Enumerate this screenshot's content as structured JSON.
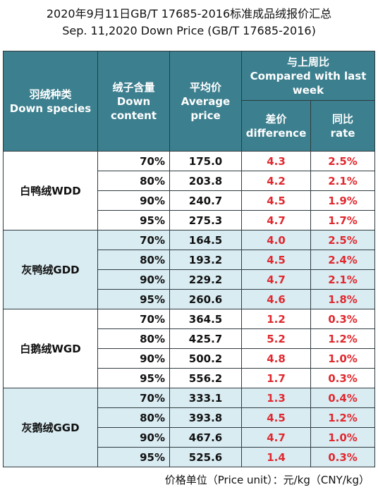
{
  "title_cn": "2020年9月11日GB/T 17685-2016标准成品绒报价汇总",
  "title_en": "Sep. 11,2020 Down Price (GB/T 17685-2016)",
  "headers": {
    "species_cn": "羽绒种类",
    "species_en": "Down species",
    "content_cn": "绒子含量",
    "content_en": "Down content",
    "price_cn": "平均价",
    "price_en": "Average price",
    "compare_cn": "与上周比",
    "compare_en": "Compared with last week",
    "diff_cn": "差价",
    "diff_en": "difference",
    "rate_cn": "同比",
    "rate_en": "rate"
  },
  "groups": [
    {
      "name": "白鸭绒WDD",
      "rows": [
        {
          "content": "70%",
          "price": "175.0",
          "diff": "4.3",
          "rate": "2.5%"
        },
        {
          "content": "80%",
          "price": "203.8",
          "diff": "4.2",
          "rate": "2.1%"
        },
        {
          "content": "90%",
          "price": "240.7",
          "diff": "4.5",
          "rate": "1.9%"
        },
        {
          "content": "95%",
          "price": "275.3",
          "diff": "4.7",
          "rate": "1.7%"
        }
      ]
    },
    {
      "name": "灰鸭绒GDD",
      "rows": [
        {
          "content": "70%",
          "price": "164.5",
          "diff": "4.0",
          "rate": "2.5%"
        },
        {
          "content": "80%",
          "price": "193.2",
          "diff": "4.5",
          "rate": "2.4%"
        },
        {
          "content": "90%",
          "price": "229.2",
          "diff": "4.7",
          "rate": "2.1%"
        },
        {
          "content": "95%",
          "price": "260.6",
          "diff": "4.6",
          "rate": "1.8%"
        }
      ]
    },
    {
      "name": "白鹅绒WGD",
      "rows": [
        {
          "content": "70%",
          "price": "364.5",
          "diff": "1.2",
          "rate": "0.3%"
        },
        {
          "content": "80%",
          "price": "425.7",
          "diff": "5.2",
          "rate": "1.2%"
        },
        {
          "content": "90%",
          "price": "500.2",
          "diff": "4.8",
          "rate": "1.0%"
        },
        {
          "content": "95%",
          "price": "556.2",
          "diff": "1.7",
          "rate": "0.3%"
        }
      ]
    },
    {
      "name": "灰鹅绒GGD",
      "rows": [
        {
          "content": "70%",
          "price": "333.1",
          "diff": "1.3",
          "rate": "0.4%"
        },
        {
          "content": "80%",
          "price": "393.8",
          "diff": "4.5",
          "rate": "1.2%"
        },
        {
          "content": "90%",
          "price": "467.6",
          "diff": "4.7",
          "rate": "1.0%"
        },
        {
          "content": "95%",
          "price": "525.6",
          "diff": "1.4",
          "rate": "0.3%"
        }
      ]
    }
  ],
  "footer": "价格单位（Price unit）：元/kg（CNY/kg）",
  "colors": {
    "header_bg": "#3c7f8e",
    "header_text": "#ffffff",
    "tint_row_bg": "#d9ecf2",
    "change_text": "#e0282e"
  }
}
